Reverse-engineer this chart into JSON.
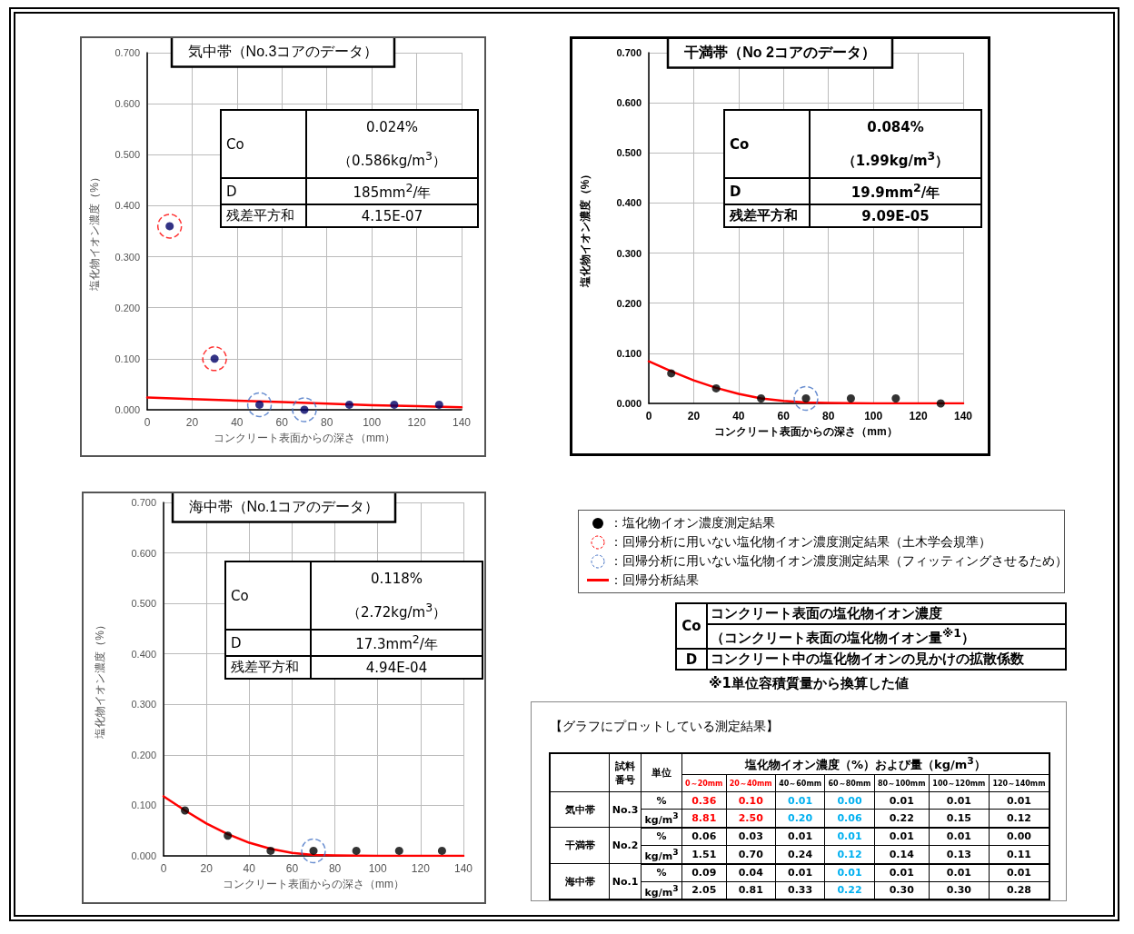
{
  "chart_data": [
    {
      "type": "scatter",
      "title": "気中帯（No.3コアのデータ）",
      "xlabel": "コンクリート表面からの深さ（mm）",
      "ylabel": "塩化物イオン濃度（%）",
      "xlim": [
        0,
        140
      ],
      "xticks": [
        0,
        20,
        40,
        60,
        80,
        100,
        120,
        140
      ],
      "ylim": [
        0,
        0.7
      ],
      "yticks": [
        {
          "value": 0,
          "label": "0.000"
        },
        {
          "value": 0.1,
          "label": "0.100"
        },
        {
          "value": 0.2,
          "label": "0.200"
        },
        {
          "value": 0.3,
          "label": "0.300"
        },
        {
          "value": 0.4,
          "label": "0.400"
        },
        {
          "value": 0.5,
          "label": "0.500"
        },
        {
          "value": 0.6,
          "label": "0.600"
        },
        {
          "value": 0.7,
          "label": "0.700"
        }
      ],
      "grid": true,
      "marker": "circle",
      "series": [
        {
          "type": "line",
          "color": "#ff0000",
          "marker": "none",
          "x": [
            0,
            20,
            40,
            60,
            80,
            100,
            120,
            140
          ],
          "values": [
            0.024,
            0.021,
            0.018,
            0.015,
            0.012,
            0.009,
            0.007,
            0.005
          ]
        },
        {
          "color": "#000066",
          "x": [
            10,
            30,
            50,
            70,
            90,
            110,
            130
          ],
          "values": [
            0.36,
            0.1,
            0.01,
            0.0,
            0.01,
            0.01,
            0.01
          ]
        },
        {
          "color": "#ff0000",
          "line_style": "dashed",
          "x": [
            10,
            30
          ],
          "values": [
            0.36,
            0.1
          ]
        },
        {
          "color": "#4472c4",
          "line_style": "dashed",
          "x": [
            50,
            70
          ],
          "values": [
            0.01,
            0.0
          ]
        }
      ],
      "annotations": [
        "Co",
        "0.024%",
        "（0.586kg/m$^{3}$）",
        "D",
        "185mm$^{2}$/年",
        "残差平方和",
        "4.15E-07"
      ]
    },
    {
      "type": "scatter",
      "title": "干満帯（No 2コアのデータ）",
      "xlabel": "コンクリート表面からの深さ（mm）",
      "ylabel": "塩化物イオン濃度（%）",
      "xlim": [
        0,
        140
      ],
      "xticks": [
        0,
        20,
        40,
        60,
        80,
        100,
        120,
        140
      ],
      "ylim": [
        0,
        0.7
      ],
      "yticks": [
        {
          "value": 0,
          "label": "0.000"
        },
        {
          "value": 0.1,
          "label": "0.100"
        },
        {
          "value": 0.2,
          "label": "0.200"
        },
        {
          "value": 0.3,
          "label": "0.300"
        },
        {
          "value": 0.4,
          "label": "0.400"
        },
        {
          "value": 0.5,
          "label": "0.500"
        },
        {
          "value": 0.6,
          "label": "0.600"
        },
        {
          "value": 0.7,
          "label": "0.700"
        }
      ],
      "grid": true,
      "marker": "circle",
      "series": [
        {
          "type": "line",
          "color": "#ff0000",
          "marker": "none",
          "x": [
            0,
            10,
            20,
            30,
            40,
            50,
            60,
            70,
            80,
            100,
            140
          ],
          "values": [
            0.084,
            0.064,
            0.046,
            0.031,
            0.019,
            0.01,
            0.005,
            0.002,
            0.001,
            0,
            0
          ]
        },
        {
          "color": "#000000",
          "x": [
            10,
            30,
            50,
            70,
            90,
            110,
            130
          ],
          "values": [
            0.06,
            0.03,
            0.01,
            0.01,
            0.01,
            0.01,
            0.0
          ]
        },
        {
          "color": "#4472c4",
          "line_style": "dashed",
          "x": [
            70
          ],
          "values": [
            0.01
          ]
        }
      ],
      "annotations": [
        "Co",
        "0.084%",
        "（1.99kg/m$^{3}$）",
        "D",
        "19.9mm$^{2}$/年",
        "残差平方和",
        "9.09E-05"
      ]
    },
    {
      "type": "scatter",
      "title": "海中帯（No.1コアのデータ）",
      "xlabel": "コンクリート表面からの深さ（mm）",
      "ylabel": "塩化物イオン濃度（%）",
      "xlim": [
        0,
        140
      ],
      "xticks": [
        0,
        20,
        40,
        60,
        80,
        100,
        120,
        140
      ],
      "ylim": [
        0,
        0.7
      ],
      "yticks": [
        {
          "value": 0,
          "label": "0.000"
        },
        {
          "value": 0.1,
          "label": "0.100"
        },
        {
          "value": 0.2,
          "label": "0.200"
        },
        {
          "value": 0.3,
          "label": "0.300"
        },
        {
          "value": 0.4,
          "label": "0.400"
        },
        {
          "value": 0.5,
          "label": "0.500"
        },
        {
          "value": 0.6,
          "label": "0.600"
        },
        {
          "value": 0.7,
          "label": "0.700"
        }
      ],
      "grid": true,
      "marker": "circle",
      "series": [
        {
          "type": "line",
          "color": "#ff0000",
          "marker": "none",
          "x": [
            0,
            10,
            20,
            30,
            40,
            50,
            60,
            70,
            80,
            100,
            140
          ],
          "values": [
            0.118,
            0.09,
            0.064,
            0.043,
            0.026,
            0.014,
            0.006,
            0.002,
            0.001,
            0,
            0
          ]
        },
        {
          "color": "#000000",
          "x": [
            10,
            30,
            50,
            70,
            90,
            110,
            130
          ],
          "values": [
            0.09,
            0.04,
            0.01,
            0.01,
            0.01,
            0.01,
            0.01
          ]
        },
        {
          "color": "#4472c4",
          "line_style": "dashed",
          "x": [
            70
          ],
          "values": [
            0.01
          ]
        }
      ],
      "annotations": [
        "Co",
        "0.118%",
        "（2.72kg/m$^{3}$）",
        "D",
        "17.3mm$^{2}$/年",
        "残差平方和",
        "4.94E-04"
      ]
    },
    {
      "type": "other",
      "colors": [
        "#000000",
        "#ff0000",
        "#4472c4",
        "#ff0000"
      ],
      "annotations": [
        "：塩化物イオン濃度測定結果",
        "：回帰分析に用いない塩化物イオン濃度測定結果（土木学会規準）",
        "：回帰分析に用いない塩化物イオン濃度測定結果（フィッティングさせるため）",
        "：回帰分析結果",
        "Co",
        "コンクリート表面の塩化物イオン濃度",
        "（コンクリート表面の塩化物イオン量$^{※1}$）",
        "D",
        "コンクリート中の塩化物イオンの見かけの拡散係数",
        "※1単位容積質量から換算した値"
      ]
    },
    {
      "type": "other",
      "title": "【グラフにプロットしている測定結果】",
      "annotations": [
        "試料番号",
        "単位",
        "塩化物イオン濃度（%）および量（kg/m$^{3}$）",
        "0～20mm",
        "20～40mm",
        "40～60mm",
        "60～80mm",
        "80～100mm",
        "100～120mm",
        "120～140mm",
        "気中帯",
        "No.3",
        "%",
        "0.36",
        "0.10",
        "0.01",
        "0.00",
        "0.01",
        "0.01",
        "0.01",
        "kg/m$^{3}$",
        "8.81",
        "2.50",
        "0.20",
        "0.06",
        "0.22",
        "0.15",
        "0.12",
        "干満帯",
        "No.2",
        "%",
        "0.06",
        "0.03",
        "0.01",
        "0.01",
        "0.01",
        "0.01",
        "0.00",
        "kg/m$^{3}$",
        "1.51",
        "0.70",
        "0.24",
        "0.12",
        "0.14",
        "0.13",
        "0.11",
        "海中帯",
        "No.1",
        "%",
        "0.09",
        "0.04",
        "0.01",
        "0.01",
        "0.01",
        "0.01",
        "0.01",
        "kg/m$^{3}$",
        "2.05",
        "0.81",
        "0.33",
        "0.22",
        "0.30",
        "0.30",
        "0.28"
      ],
      "colors": [
        "#000000",
        "#000000",
        "#000000",
        "#ff0000",
        "#ff0000",
        "#000000",
        "#000000",
        "#000000",
        "#000000",
        "#000000",
        "#000000",
        "#000000",
        "#000000",
        "#ff0000",
        "#ff0000",
        "#00b0f0",
        "#00b0f0",
        "#000000",
        "#000000",
        "#000000",
        "#000000",
        "#ff0000",
        "#ff0000",
        "#00b0f0",
        "#00b0f0",
        "#000000",
        "#000000",
        "#000000",
        "#000000",
        "#000000",
        "#000000",
        "#000000",
        "#000000",
        "#000000",
        "#00b0f0",
        "#000000",
        "#000000",
        "#000000",
        "#000000",
        "#000000",
        "#000000",
        "#000000",
        "#00b0f0",
        "#000000",
        "#000000",
        "#000000",
        "#000000",
        "#000000",
        "#000000",
        "#000000",
        "#000000",
        "#000000",
        "#00b0f0",
        "#000000",
        "#000000",
        "#000000",
        "#000000",
        "#000000",
        "#000000",
        "#000000",
        "#00b0f0",
        "#000000",
        "#000000",
        "#000000"
      ]
    }
  ]
}
